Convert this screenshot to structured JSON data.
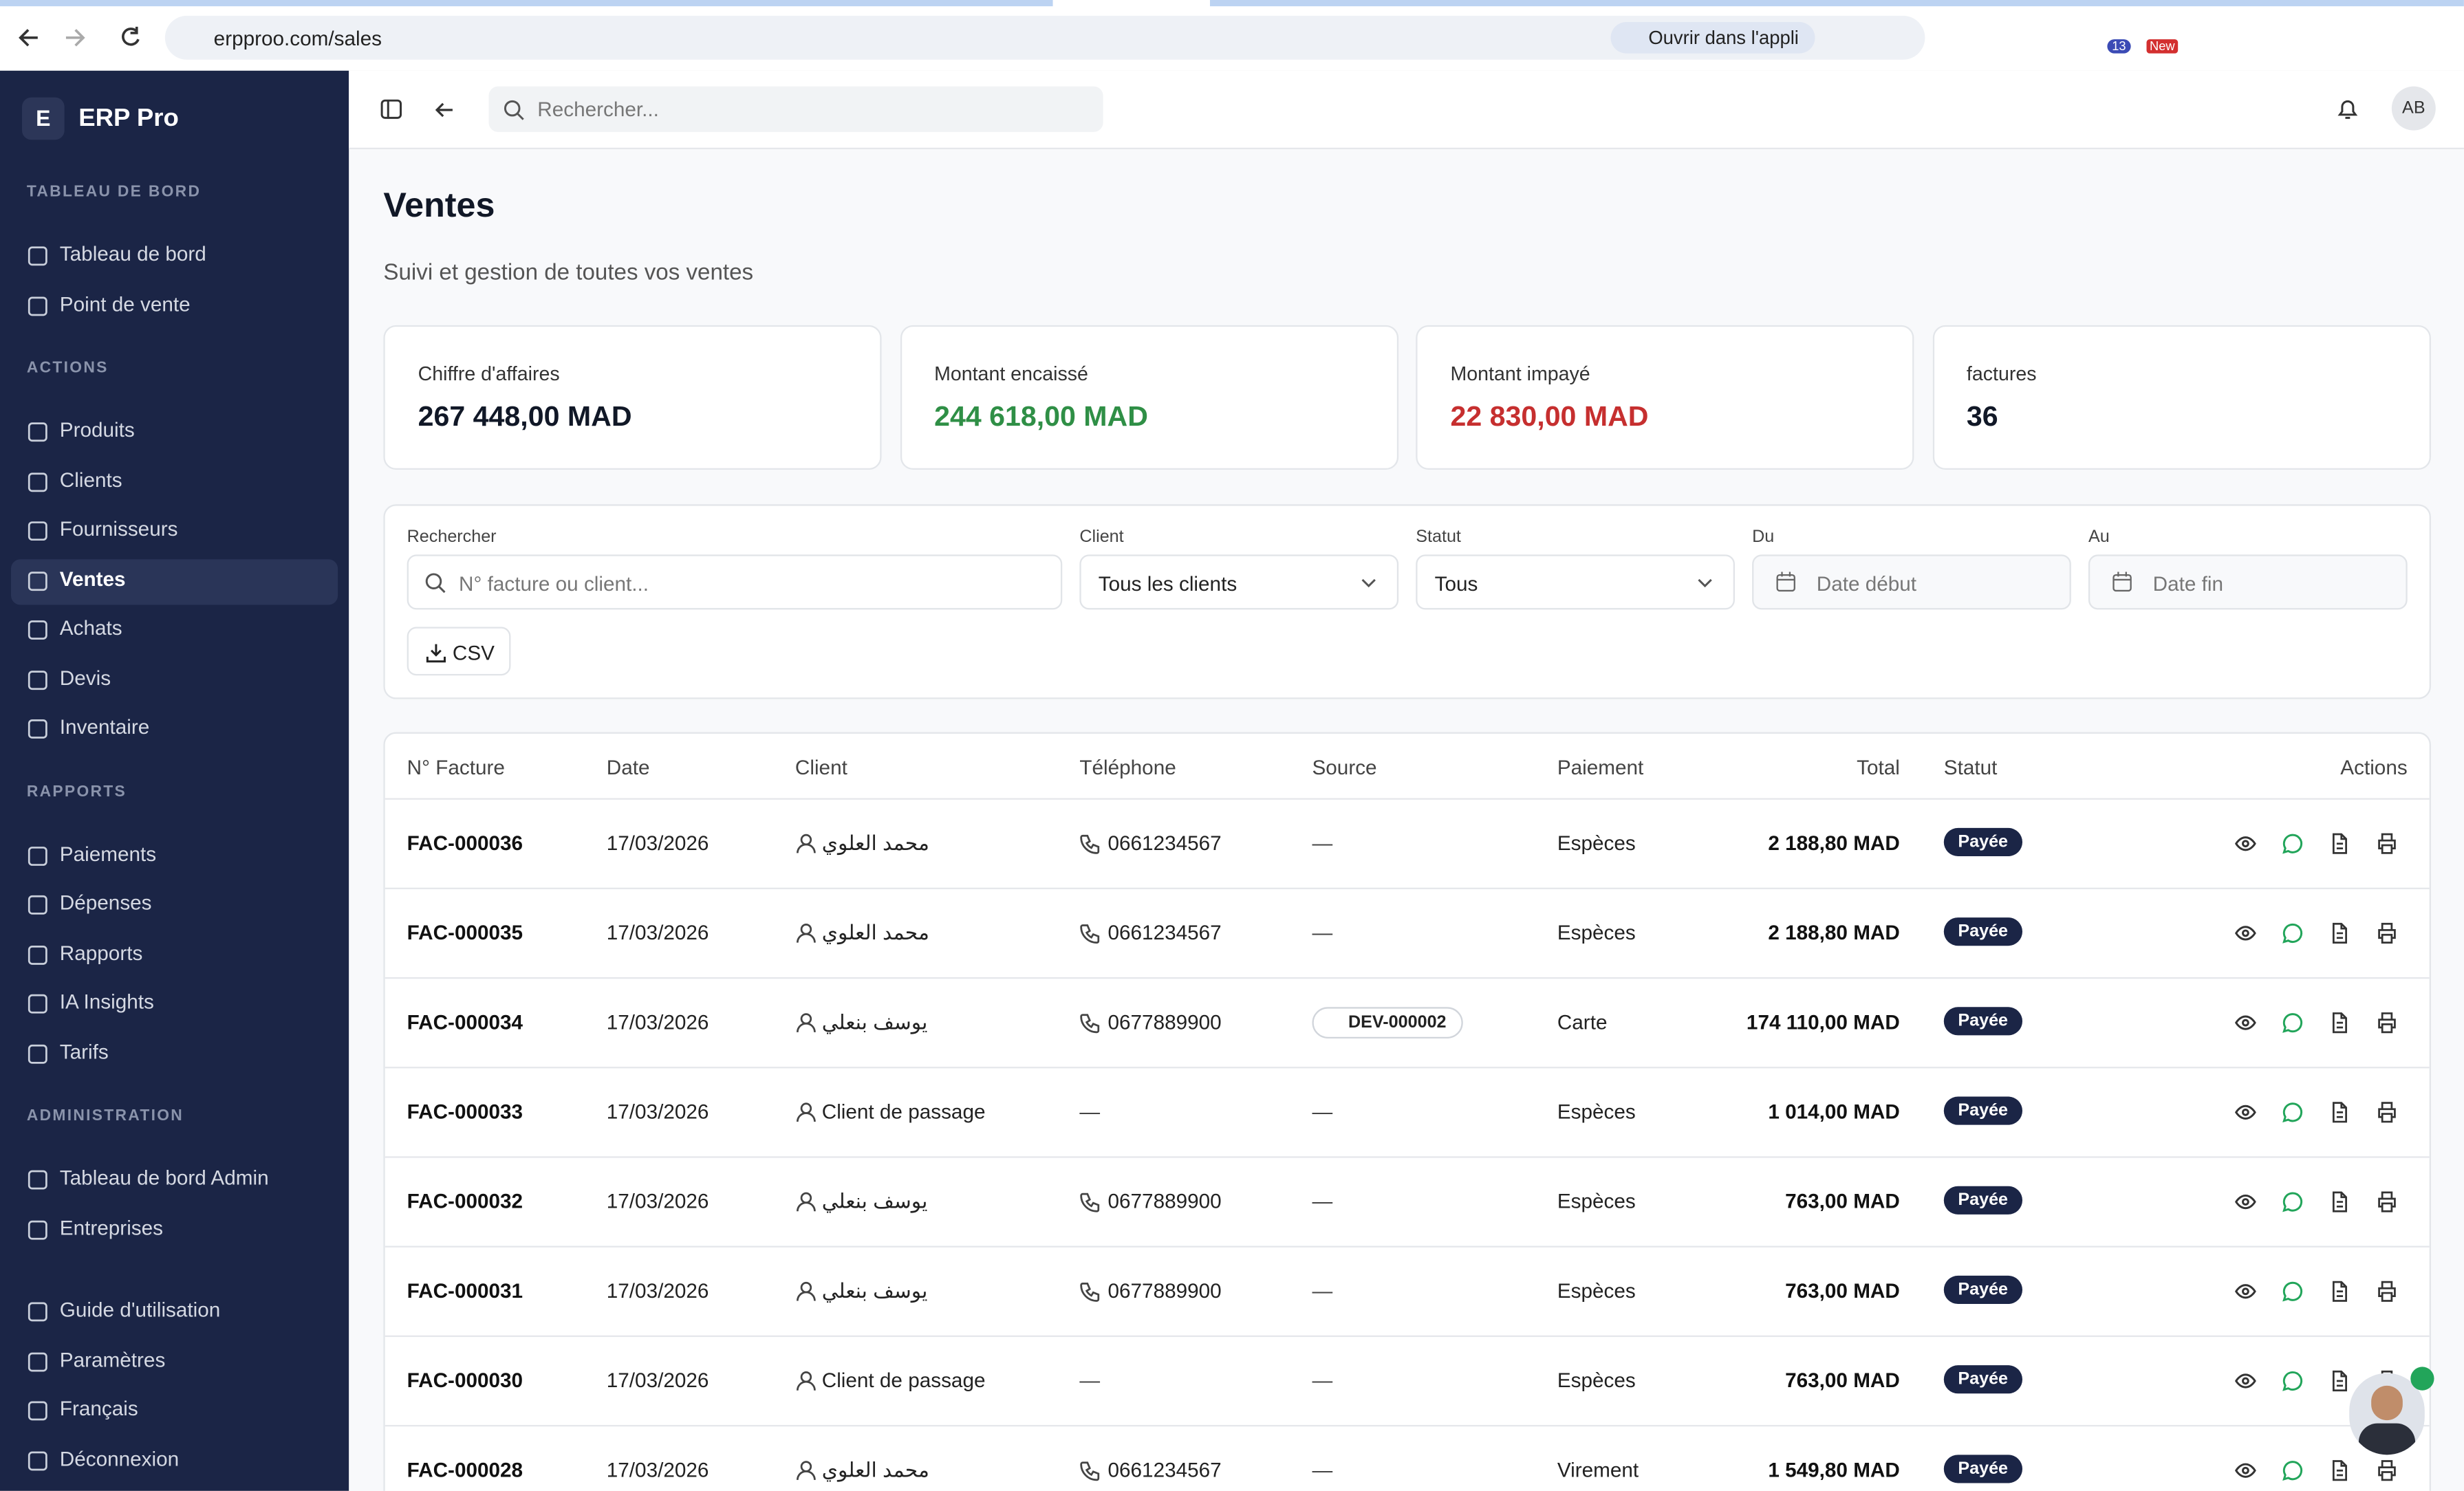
{
  "browser": {
    "url": "erpproo.com/sales",
    "open_app": "Ouvrir dans l'appli",
    "badge_count": "13",
    "badge_new": "New"
  },
  "sidebar": {
    "logo_letter": "E",
    "app_name": "ERP Pro",
    "sections": [
      {
        "title": "TABLEAU DE BORD",
        "items": [
          {
            "label": "Tableau de bord"
          },
          {
            "label": "Point de vente"
          }
        ]
      },
      {
        "title": "ACTIONS",
        "items": [
          {
            "label": "Produits"
          },
          {
            "label": "Clients"
          },
          {
            "label": "Fournisseurs"
          },
          {
            "label": "Ventes",
            "active": true
          },
          {
            "label": "Achats"
          },
          {
            "label": "Devis"
          },
          {
            "label": "Inventaire"
          }
        ]
      },
      {
        "title": "RAPPORTS",
        "items": [
          {
            "label": "Paiements"
          },
          {
            "label": "Dépenses"
          },
          {
            "label": "Rapports"
          },
          {
            "label": "IA Insights"
          },
          {
            "label": "Tarifs"
          }
        ]
      },
      {
        "title": "ADMINISTRATION",
        "items": [
          {
            "label": "Tableau de bord Admin"
          },
          {
            "label": "Entreprises"
          }
        ]
      }
    ],
    "footer_items": [
      {
        "label": "Guide d'utilisation"
      },
      {
        "label": "Paramètres"
      },
      {
        "label": "Français"
      },
      {
        "label": "Déconnexion"
      }
    ]
  },
  "topbar": {
    "search_placeholder": "Rechercher...",
    "avatar": "AB"
  },
  "page": {
    "title": "Ventes",
    "subtitle": "Suivi et gestion de toutes vos ventes"
  },
  "stats": [
    {
      "label": "Chiffre d'affaires",
      "value": "267 448,00 MAD",
      "color": "#111827"
    },
    {
      "label": "Montant encaissé",
      "value": "244 618,00 MAD",
      "color": "#2f8f46"
    },
    {
      "label": "Montant impayé",
      "value": "22 830,00 MAD",
      "color": "#c62f2f"
    },
    {
      "label": "factures",
      "value": "36",
      "color": "#111827"
    }
  ],
  "filters": {
    "search_label": "Rechercher",
    "search_placeholder": "N° facture ou client...",
    "client_label": "Client",
    "client_value": "Tous les clients",
    "status_label": "Statut",
    "status_value": "Tous",
    "from_label": "Du",
    "from_placeholder": "Date début",
    "to_label": "Au",
    "to_placeholder": "Date fin",
    "export": "CSV"
  },
  "table": {
    "columns": [
      "N° Facture",
      "Date",
      "Client",
      "Téléphone",
      "Source",
      "Paiement",
      "Total",
      "Statut",
      "Actions"
    ],
    "rows": [
      [
        "FAC-000036",
        "17/03/2026",
        "محمد العلوي",
        "0661234567",
        "—",
        "Espèces",
        "2 188,80 MAD",
        "Payée"
      ],
      [
        "FAC-000035",
        "17/03/2026",
        "محمد العلوي",
        "0661234567",
        "—",
        "Espèces",
        "2 188,80 MAD",
        "Payée"
      ],
      [
        "FAC-000034",
        "17/03/2026",
        "يوسف بنعلي",
        "0677889900",
        "DEV-000002",
        "Carte",
        "174 110,00 MAD",
        "Payée"
      ],
      [
        "FAC-000033",
        "17/03/2026",
        "Client de passage",
        "—",
        "—",
        "Espèces",
        "1 014,00 MAD",
        "Payée"
      ],
      [
        "FAC-000032",
        "17/03/2026",
        "يوسف بنعلي",
        "0677889900",
        "—",
        "Espèces",
        "763,00 MAD",
        "Payée"
      ],
      [
        "FAC-000031",
        "17/03/2026",
        "يوسف بنعلي",
        "0677889900",
        "—",
        "Espèces",
        "763,00 MAD",
        "Payée"
      ],
      [
        "FAC-000030",
        "17/03/2026",
        "Client de passage",
        "—",
        "—",
        "Espèces",
        "763,00 MAD",
        "Payée"
      ],
      [
        "FAC-000028",
        "17/03/2026",
        "محمد العلوي",
        "0661234567",
        "—",
        "Virement",
        "1 549,80 MAD",
        "Payée"
      ]
    ]
  }
}
